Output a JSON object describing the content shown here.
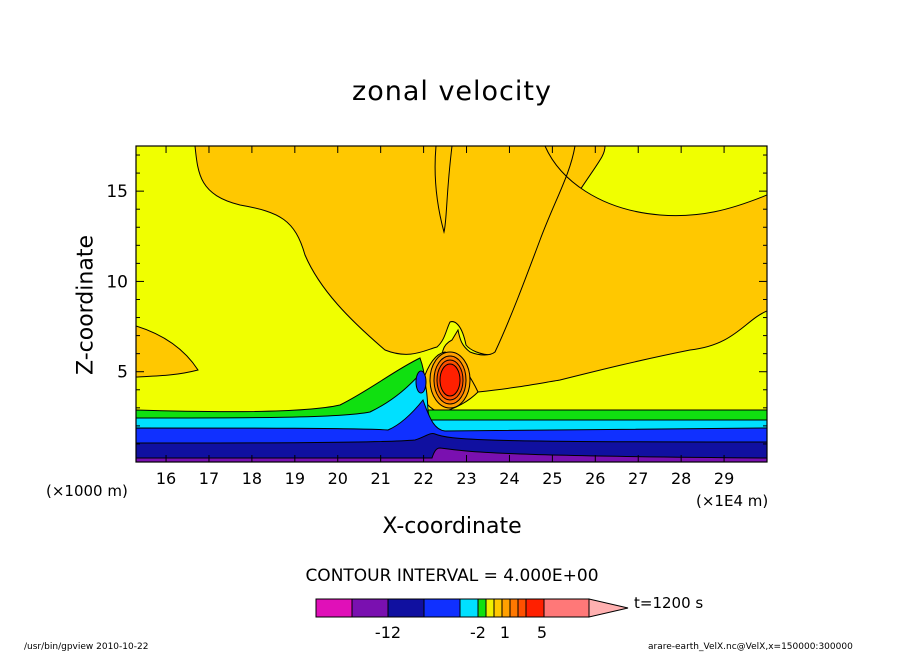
{
  "chart_data": {
    "type": "heatmap",
    "title": "zonal velocity",
    "xlabel": "X-coordinate",
    "ylabel": "Z-coordinate",
    "x_unit_left": "(×1000 m)",
    "x_unit_right": "(×1E4 m)",
    "xlim": [
      15.3,
      30.0
    ],
    "ylim": [
      0,
      17.5
    ],
    "x_ticks": [
      16,
      17,
      18,
      19,
      20,
      21,
      22,
      23,
      24,
      25,
      26,
      27,
      28,
      29
    ],
    "y_ticks": [
      5,
      10,
      15
    ],
    "contour_interval_text": "CONTOUR INTERVAL = 4.000E+00",
    "time_label": "t=1200 s",
    "colorbar": {
      "tick_labels": [
        "-12",
        "-2",
        "1",
        "5"
      ],
      "colors": [
        "#e010b8",
        "#7a10b0",
        "#1010a0",
        "#1030ff",
        "#00e0ff",
        "#10e010",
        "#f0f000",
        "#ffc800",
        "#ffa000",
        "#ff7800",
        "#ff5000",
        "#ff2000",
        "#ff7878",
        "#ffb0b0"
      ]
    },
    "field_colors": {
      "yellow": "#f0ff00",
      "orange": "#ffc800",
      "green": "#10e010",
      "cyan": "#00e0ff",
      "blue": "#1030ff",
      "dark_blue": "#1010a0",
      "purple": "#7a10b0",
      "red": "#ff2000"
    }
  },
  "footer": {
    "left": "/usr/bin/gpview   2010-10-22",
    "right": "arare-earth_VelX.nc@VelX,x=150000:300000"
  }
}
